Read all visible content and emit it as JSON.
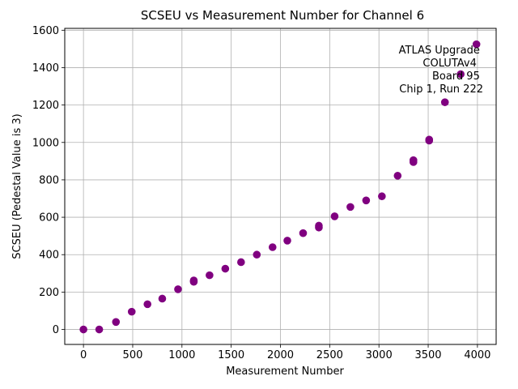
{
  "chart_data": {
    "type": "scatter",
    "title": "SCSEU vs Measurement Number for Channel 6",
    "xlabel": "Measurement Number",
    "ylabel": "SCSEU (Pedestal Value is 3)",
    "xlim": [
      -190,
      4190
    ],
    "ylim": [
      -80,
      1610
    ],
    "xticks": [
      0,
      500,
      1000,
      1500,
      2000,
      2500,
      3000,
      3500,
      4000
    ],
    "yticks": [
      0,
      200,
      400,
      600,
      800,
      1000,
      1200,
      1400,
      1600
    ],
    "grid": true,
    "marker_color": "#800080",
    "annotation": [
      "ATLAS Upgrade",
      "COLUTAv4",
      "Board 95",
      "Chip 1, Run 222"
    ],
    "annotation_placement": "top-right",
    "points": [
      {
        "x": 0,
        "y": 0
      },
      {
        "x": 160,
        "y": 0
      },
      {
        "x": 330,
        "y": 40
      },
      {
        "x": 490,
        "y": 95
      },
      {
        "x": 650,
        "y": 135
      },
      {
        "x": 800,
        "y": 165
      },
      {
        "x": 960,
        "y": 215
      },
      {
        "x": 1120,
        "y": 255
      },
      {
        "x": 1120,
        "y": 262
      },
      {
        "x": 1280,
        "y": 290
      },
      {
        "x": 1440,
        "y": 325
      },
      {
        "x": 1600,
        "y": 360
      },
      {
        "x": 1760,
        "y": 400
      },
      {
        "x": 1920,
        "y": 440
      },
      {
        "x": 2070,
        "y": 475
      },
      {
        "x": 2230,
        "y": 515
      },
      {
        "x": 2390,
        "y": 545
      },
      {
        "x": 2390,
        "y": 555
      },
      {
        "x": 2550,
        "y": 605
      },
      {
        "x": 2710,
        "y": 655
      },
      {
        "x": 2870,
        "y": 690
      },
      {
        "x": 3030,
        "y": 712
      },
      {
        "x": 3190,
        "y": 822
      },
      {
        "x": 3350,
        "y": 895
      },
      {
        "x": 3350,
        "y": 905
      },
      {
        "x": 3510,
        "y": 1010
      },
      {
        "x": 3510,
        "y": 1015
      },
      {
        "x": 3670,
        "y": 1215
      },
      {
        "x": 3830,
        "y": 1365
      },
      {
        "x": 3990,
        "y": 1525
      }
    ]
  }
}
